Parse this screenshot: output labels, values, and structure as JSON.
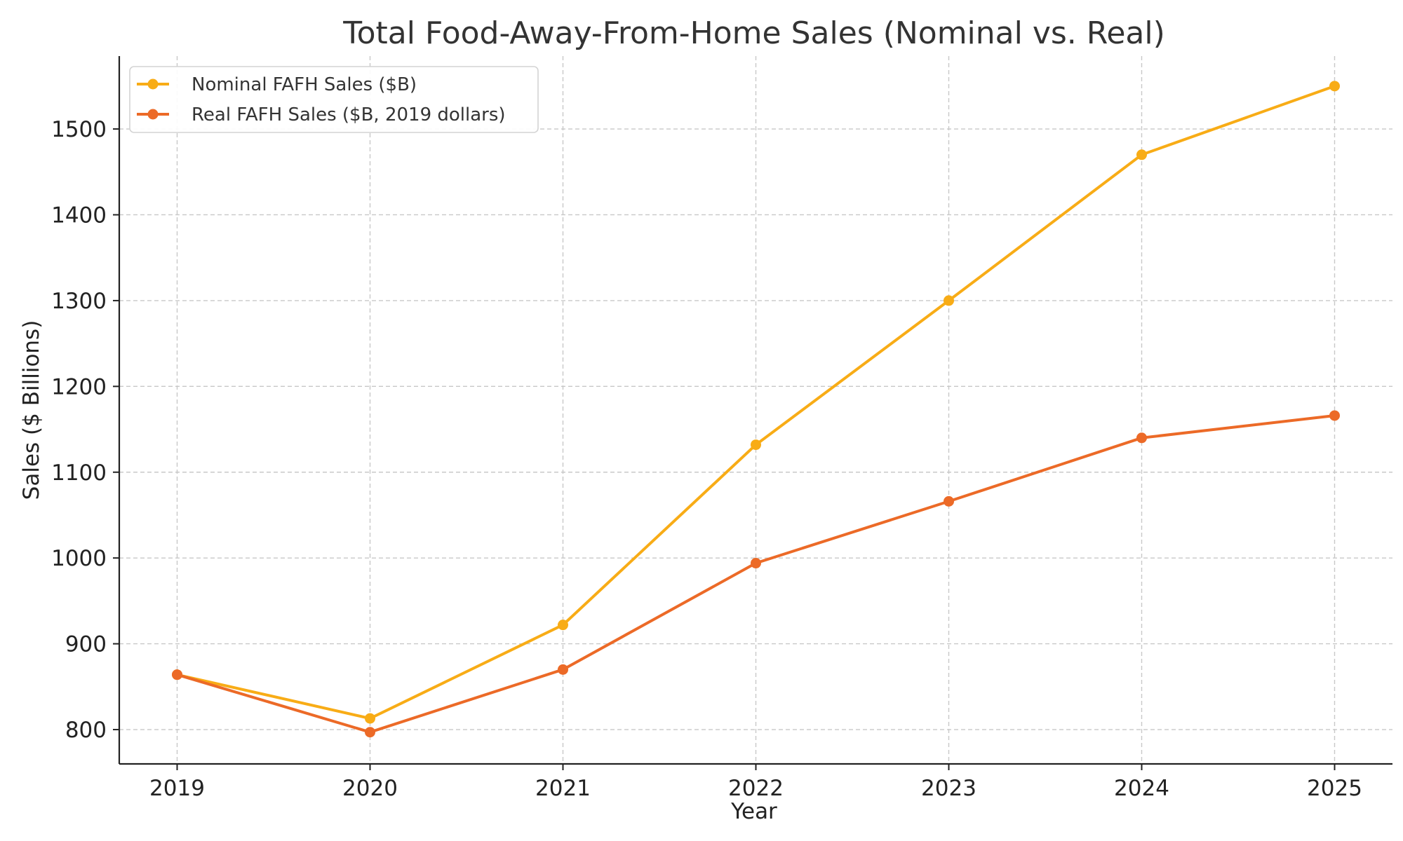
{
  "chart_data": {
    "type": "line",
    "title": "Total Food-Away-From-Home Sales (Nominal vs. Real)",
    "xlabel": "Year",
    "ylabel": "Sales ($ Billions)",
    "x": [
      2019,
      2020,
      2021,
      2022,
      2023,
      2024,
      2025
    ],
    "x_tick_labels": [
      "2019",
      "2020",
      "2021",
      "2022",
      "2023",
      "2024",
      "2025"
    ],
    "xlim": [
      2018.7,
      2025.3
    ],
    "ylim": [
      760,
      1585
    ],
    "y_ticks": [
      800,
      900,
      1000,
      1100,
      1200,
      1300,
      1400,
      1500
    ],
    "y_tick_labels": [
      "800",
      "900",
      "1000",
      "1100",
      "1200",
      "1300",
      "1400",
      "1500"
    ],
    "grid": true,
    "legend_position": "top-left",
    "series": [
      {
        "name": "Nominal FAFH Sales ($B)",
        "color": "#f8ac16",
        "marker": "circle",
        "values": [
          864,
          813,
          922,
          1132,
          1300,
          1470,
          1550
        ]
      },
      {
        "name": "Real FAFH Sales ($B, 2019 dollars)",
        "color": "#ec6a27",
        "marker": "circle",
        "values": [
          864,
          797,
          870,
          994,
          1066,
          1140,
          1166
        ]
      }
    ]
  }
}
